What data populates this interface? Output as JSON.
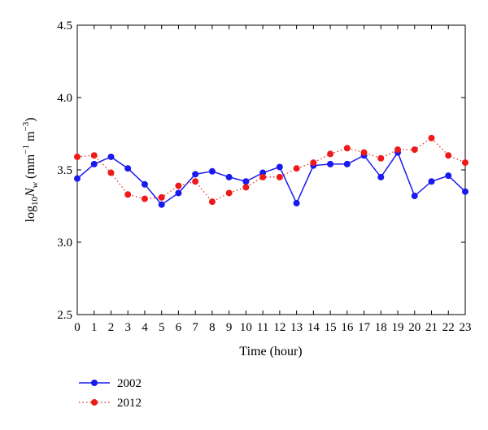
{
  "chart_data": {
    "type": "line",
    "xlabel": "Time (hour)",
    "ylabel": {
      "base": "log",
      "base_sub": "10",
      "var": "N",
      "var_sub": "w",
      "units_open": " (mm",
      "exp1": "−1",
      "units_mid": " m",
      "exp2": "−3",
      "units_close": ")"
    },
    "xlim": [
      0,
      23
    ],
    "ylim": [
      2.5,
      4.5
    ],
    "x": [
      0,
      1,
      2,
      3,
      4,
      5,
      6,
      7,
      8,
      9,
      10,
      11,
      12,
      13,
      14,
      15,
      16,
      17,
      18,
      19,
      20,
      21,
      22,
      23
    ],
    "xticklabels": [
      "0",
      "1",
      "2",
      "3",
      "4",
      "5",
      "6",
      "7",
      "8",
      "9",
      "10",
      "11",
      "12",
      "13",
      "14",
      "15",
      "16",
      "17",
      "18",
      "19",
      "20",
      "21",
      "22",
      "23"
    ],
    "yticks": [
      2.5,
      3.0,
      3.5,
      4.0,
      4.5
    ],
    "yticklabels": [
      "2.5",
      "3.0",
      "3.5",
      "4.0",
      "4.5"
    ],
    "grid": false,
    "legend_position": "below-left",
    "series": [
      {
        "name": "2002",
        "color": "#1a1aee",
        "style": "solid",
        "values": [
          3.44,
          3.54,
          3.59,
          3.51,
          3.4,
          3.26,
          3.34,
          3.47,
          3.49,
          3.45,
          3.42,
          3.48,
          3.52,
          3.27,
          3.53,
          3.54,
          3.54,
          3.6,
          3.45,
          3.62,
          3.32,
          3.42,
          3.46,
          3.35
        ]
      },
      {
        "name": "2012",
        "color": "#ee1a1a",
        "style": "dotted",
        "values": [
          3.59,
          3.6,
          3.48,
          3.33,
          3.3,
          3.31,
          3.39,
          3.42,
          3.28,
          3.34,
          3.38,
          3.45,
          3.45,
          3.51,
          3.55,
          3.61,
          3.65,
          3.62,
          3.58,
          3.64,
          3.64,
          3.72,
          3.6,
          3.55
        ]
      }
    ]
  }
}
